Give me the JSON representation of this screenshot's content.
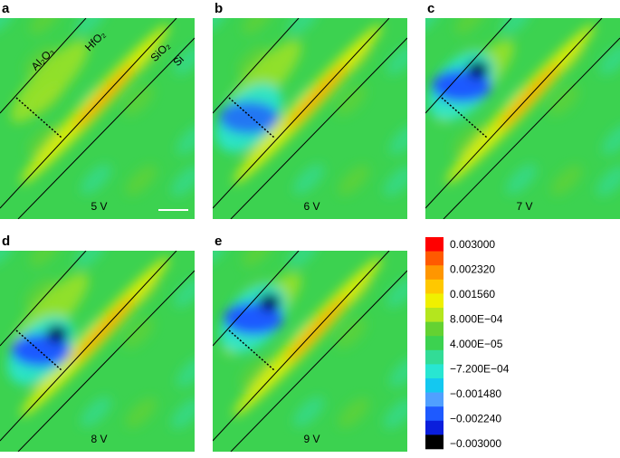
{
  "panels": [
    {
      "label": "a",
      "voltage": "5 V"
    },
    {
      "label": "b",
      "voltage": "6 V"
    },
    {
      "label": "c",
      "voltage": "7 V"
    },
    {
      "label": "d",
      "voltage": "8 V"
    },
    {
      "label": "e",
      "voltage": "9 V"
    }
  ],
  "layers": [
    "Al₂O₃",
    "HfO₂",
    "SiO₂",
    "Si"
  ],
  "colorbar": {
    "labels": [
      "0.003000",
      "0.002320",
      "0.001560",
      "8.000E−04",
      "4.000E−05",
      "−7.200E−04",
      "−0.001480",
      "−0.002240",
      "−0.003000"
    ],
    "colors": [
      "#ff0000",
      "#ff5a00",
      "#ff9600",
      "#ffc800",
      "#f0f000",
      "#b4e61e",
      "#64d232",
      "#3cd250",
      "#32dc96",
      "#28e6d2",
      "#14c8f0",
      "#50a0ff",
      "#1e5aff",
      "#0a1edc",
      "#000000"
    ]
  }
}
